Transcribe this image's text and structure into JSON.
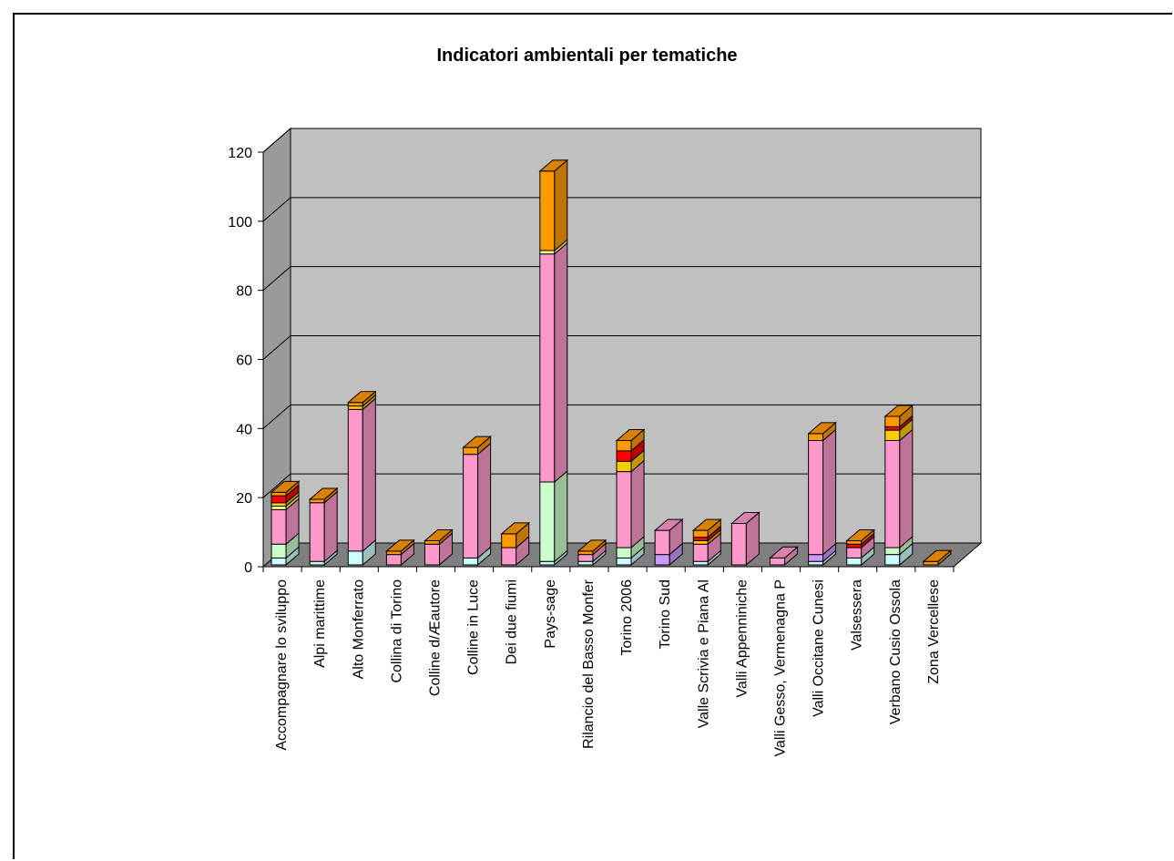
{
  "chart_data": {
    "type": "bar",
    "stacked": true,
    "title": "Indicatori ambientali per tematiche",
    "ylim": [
      0,
      120
    ],
    "yticks": [
      "0",
      "20",
      "40",
      "60",
      "80",
      "100",
      "120"
    ],
    "grid": true,
    "legend": "none",
    "categories": [
      "Accompagnare lo sviluppo",
      "Alpi marittime",
      "Alto Monferrato",
      "Collina di Torino",
      "Colline d/Æautore",
      "Colline in Luce",
      "Dei due fiumi",
      "Pays-sage",
      "Rilancio del Basso Monfer",
      "Torino 2006",
      "Torino Sud",
      "Valle Scrivia e Piana Al",
      "Valli Appenniniche",
      "Valli Gesso, Vermenagna P",
      "Valli Occitane Cunesi",
      "Valsessera",
      "Verbano Cusio Ossola",
      "Zona Vercellese"
    ],
    "series_colors": [
      "#ccffff",
      "#ccffcc",
      "#cc99ff",
      "#ff99cc",
      "#ffff99",
      "#ffcc00",
      "#ff0000",
      "#ff9900"
    ],
    "stacks": [
      [
        2,
        4,
        0,
        10,
        1,
        1,
        2,
        1
      ],
      [
        1,
        0,
        0,
        17,
        0,
        0,
        0,
        1
      ],
      [
        4,
        0,
        0,
        41,
        0,
        1,
        0,
        1
      ],
      [
        0,
        0,
        0,
        3,
        0,
        0,
        0,
        1
      ],
      [
        0,
        0,
        0,
        6,
        0,
        0,
        0,
        1
      ],
      [
        2,
        0,
        0,
        30,
        0,
        0,
        0,
        2
      ],
      [
        0,
        0,
        0,
        5,
        0,
        0,
        0,
        4
      ],
      [
        1,
        23,
        0,
        66,
        1,
        0,
        0,
        23
      ],
      [
        1,
        0,
        0,
        2,
        0,
        0,
        0,
        1
      ],
      [
        2,
        3,
        0,
        22,
        0,
        3,
        3,
        3
      ],
      [
        0,
        0,
        3,
        7,
        0,
        0,
        0,
        0
      ],
      [
        1,
        0,
        0,
        5,
        0,
        1,
        1,
        2
      ],
      [
        0,
        0,
        0,
        12,
        0,
        0,
        0,
        0
      ],
      [
        0,
        0,
        0,
        2,
        0,
        0,
        0,
        0
      ],
      [
        1,
        0,
        2,
        33,
        0,
        0,
        0,
        2
      ],
      [
        2,
        0,
        0,
        3,
        0,
        0,
        1,
        1
      ],
      [
        3,
        2,
        0,
        31,
        0,
        3,
        1,
        3
      ],
      [
        0,
        0,
        0,
        0,
        0,
        0,
        0,
        1
      ]
    ]
  }
}
